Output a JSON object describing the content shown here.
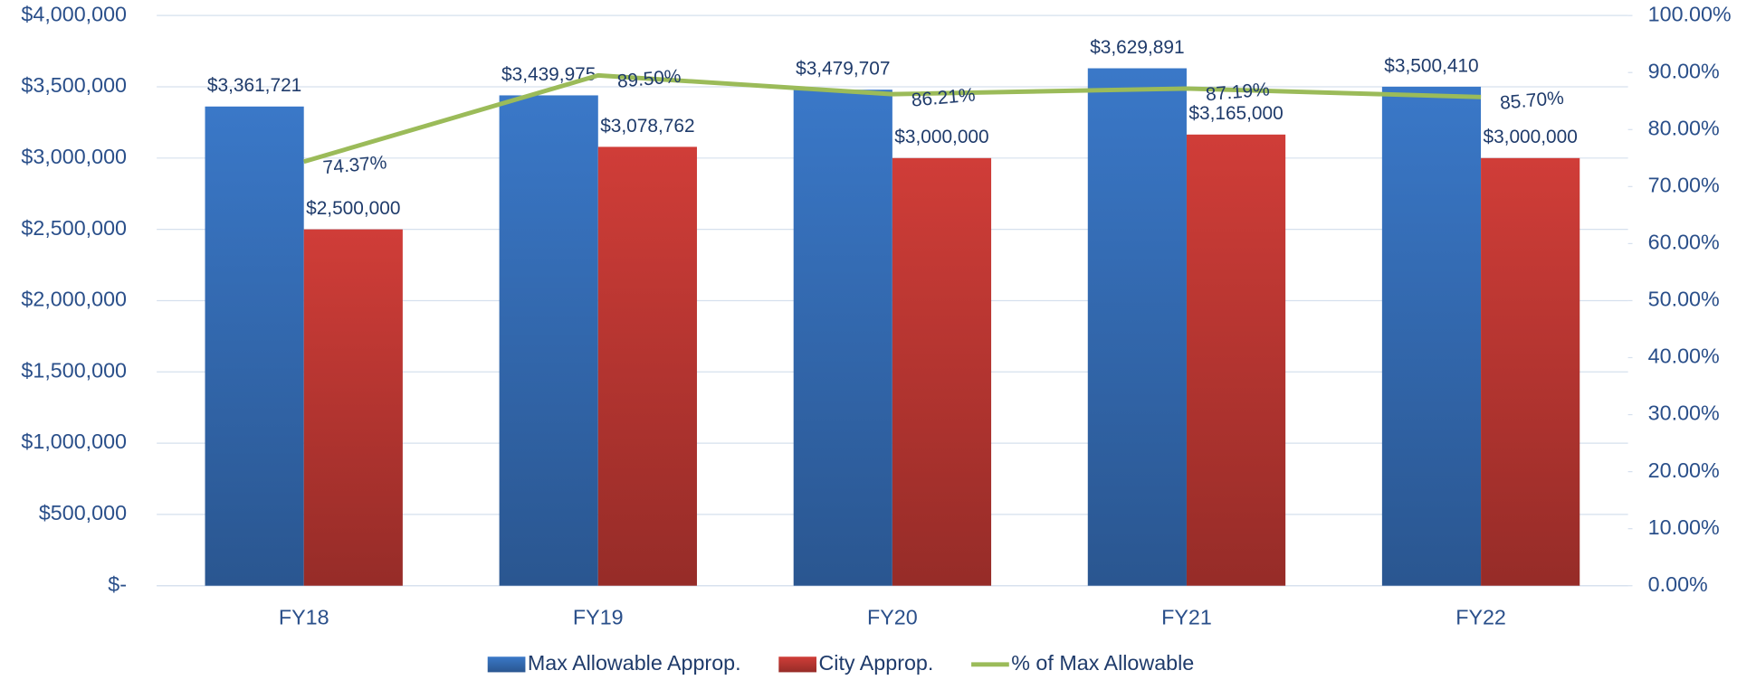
{
  "chart_data": {
    "type": "bar",
    "categories": [
      "FY18",
      "FY19",
      "FY20",
      "FY21",
      "FY22"
    ],
    "series": [
      {
        "name": "Max Allowable Approp.",
        "color": "#3a78c8",
        "type": "bar",
        "values": [
          3361721,
          3439975,
          3479707,
          3629891,
          3500410
        ],
        "value_labels": [
          "$3,361,721",
          "$3,439,975",
          "$3,479,707",
          "$3,629,891",
          "$3,500,410"
        ]
      },
      {
        "name": "City Approp.",
        "color": "#d03d38",
        "type": "bar",
        "values": [
          2500000,
          3078762,
          3000000,
          3165000,
          3000000
        ],
        "value_labels": [
          "$2,500,000",
          "$3,078,762",
          "$3,000,000",
          "$3,165,000",
          "$3,000,000"
        ]
      },
      {
        "name": "% of Max Allowable",
        "color": "#9bbb59",
        "type": "line",
        "axis": "y2",
        "values": [
          74.37,
          89.5,
          86.21,
          87.19,
          85.7
        ],
        "value_labels": [
          "74.37%",
          "89.50%",
          "86.21%",
          "87.19%",
          "85.70%"
        ]
      }
    ],
    "ylim": [
      0,
      4000000
    ],
    "yticks": [
      {
        "value": 0,
        "label": "$-"
      },
      {
        "value": 500000,
        "label": "$500,000"
      },
      {
        "value": 1000000,
        "label": "$1,000,000"
      },
      {
        "value": 1500000,
        "label": "$1,500,000"
      },
      {
        "value": 2000000,
        "label": "$2,000,000"
      },
      {
        "value": 2500000,
        "label": "$2,500,000"
      },
      {
        "value": 3000000,
        "label": "$3,000,000"
      },
      {
        "value": 3500000,
        "label": "$3,500,000"
      },
      {
        "value": 4000000,
        "label": "$4,000,000"
      }
    ],
    "y2lim": [
      0,
      100
    ],
    "y2ticks": [
      {
        "value": 0,
        "label": "0.00%"
      },
      {
        "value": 10,
        "label": "10.00%"
      },
      {
        "value": 20,
        "label": "20.00%"
      },
      {
        "value": 30,
        "label": "30.00%"
      },
      {
        "value": 40,
        "label": "40.00%"
      },
      {
        "value": 50,
        "label": "50.00%"
      },
      {
        "value": 60,
        "label": "60.00%"
      },
      {
        "value": 70,
        "label": "70.00%"
      },
      {
        "value": 80,
        "label": "80.00%"
      },
      {
        "value": 90,
        "label": "90.00%"
      },
      {
        "value": 100,
        "label": "100.00%"
      }
    ],
    "grid": true,
    "legend": "bottom"
  }
}
